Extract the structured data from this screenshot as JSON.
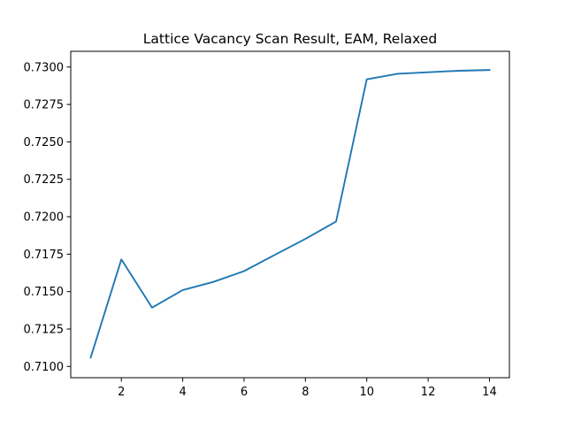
{
  "chart_data": {
    "type": "line",
    "title": "Lattice Vacancy Scan Result, EAM, Relaxed",
    "xlabel": "",
    "ylabel": "",
    "x": [
      1,
      2,
      3,
      4,
      5,
      6,
      7,
      8,
      9,
      10,
      11,
      12,
      13,
      14
    ],
    "series": [
      {
        "values": [
          0.7106,
          0.71715,
          0.71393,
          0.7151,
          0.71565,
          0.71637,
          0.71745,
          0.71852,
          0.71968,
          0.72918,
          0.72955,
          0.72965,
          0.72975,
          0.7298
        ],
        "color": "#1f77b4"
      }
    ],
    "xlim": [
      0.35,
      14.65
    ],
    "ylim": [
      0.70925,
      0.73105
    ],
    "xticks": [
      2,
      4,
      6,
      8,
      10,
      12,
      14
    ],
    "xtick_labels": [
      "2",
      "4",
      "6",
      "8",
      "10",
      "12",
      "14"
    ],
    "yticks": [
      0.71,
      0.7125,
      0.715,
      0.7175,
      0.72,
      0.7225,
      0.725,
      0.7275,
      0.73
    ],
    "ytick_labels": [
      "0.7100",
      "0.7125",
      "0.7150",
      "0.7175",
      "0.7200",
      "0.7225",
      "0.7250",
      "0.7275",
      "0.7300"
    ],
    "grid": false,
    "legend": "none"
  }
}
